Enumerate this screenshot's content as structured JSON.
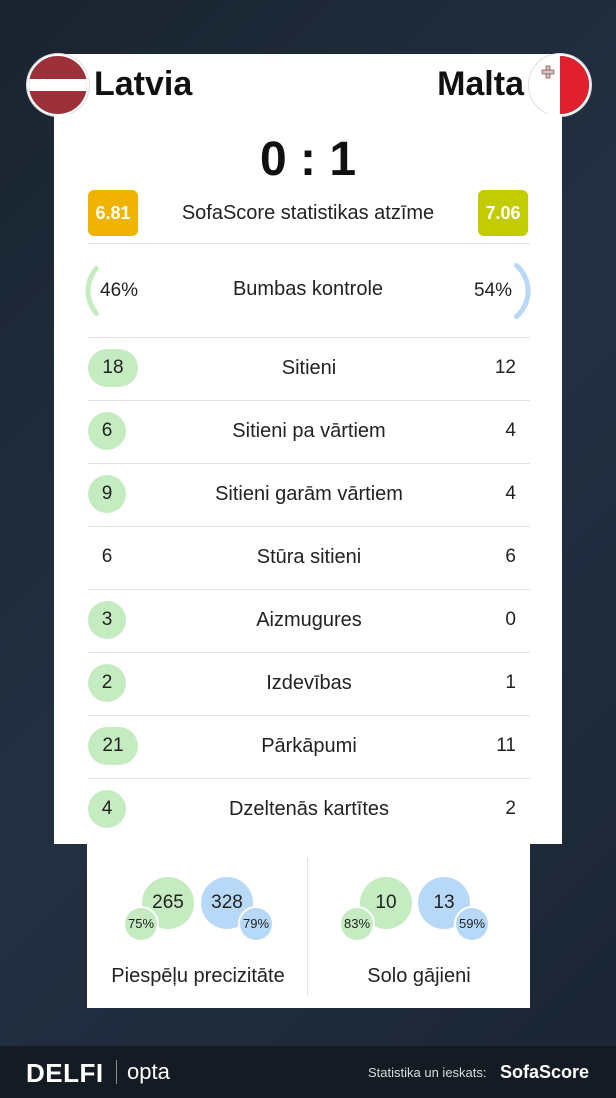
{
  "match": {
    "home_team": "Latvia",
    "away_team": "Malta",
    "score": "0 : 1"
  },
  "rating": {
    "label": "SofaScore statistikas atzīme",
    "home": "6.81",
    "away": "7.06"
  },
  "possession": {
    "label": "Bumbas kontrole",
    "home": "46%",
    "away": "54%",
    "home_fraction": 0.46,
    "away_fraction": 0.54
  },
  "stats": [
    {
      "label": "Sitieni",
      "home": "18",
      "away": "12"
    },
    {
      "label": "Sitieni pa vārtiem",
      "home": "6",
      "away": "4"
    },
    {
      "label": "Sitieni garām vārtiem",
      "home": "9",
      "away": "4"
    },
    {
      "label": "Stūra sitieni",
      "home": "6",
      "away": "6"
    },
    {
      "label": "Aizmugures",
      "home": "3",
      "away": "0"
    },
    {
      "label": "Izdevības",
      "home": "2",
      "away": "1"
    },
    {
      "label": "Pārkāpumi",
      "home": "21",
      "away": "11"
    },
    {
      "label": "Dzeltenās kartītes",
      "home": "4",
      "away": "2"
    }
  ],
  "passes": {
    "label": "Piespēļu precizitāte",
    "home": "265",
    "home_pct": "75%",
    "away": "328",
    "away_pct": "79%"
  },
  "dribbles": {
    "label": "Solo gājieni",
    "home": "10",
    "home_pct": "83%",
    "away": "13",
    "away_pct": "59%"
  },
  "footer": {
    "brand": "DELFI",
    "partner": "opta",
    "credit": "Statistika un ieskats:",
    "provider": "SofaScore"
  },
  "colors": {
    "home_accent": "#c5ebc0",
    "away_accent": "#b7d8f7",
    "rating_home": "#f0b400",
    "rating_away": "#c2cc00"
  },
  "icons": [
    "latvia-flag-icon",
    "malta-flag-icon"
  ]
}
